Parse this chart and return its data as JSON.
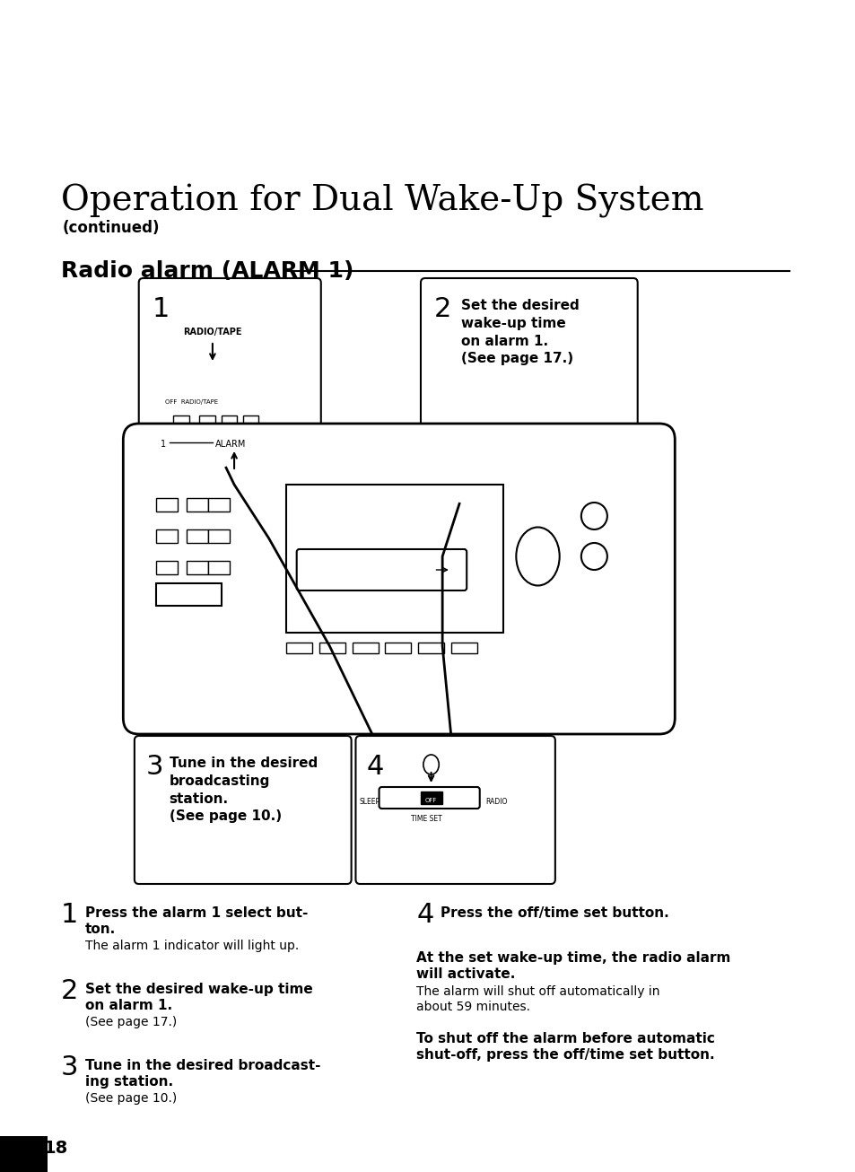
{
  "title": "Operation for Dual Wake-Up System",
  "subtitle": "(continued)",
  "section_title": "Radio alarm (ALARM 1)",
  "bg_color": "#ffffff",
  "page_number": "18",
  "step1_label": "1",
  "step2_label": "2",
  "step2_text": "Set the desired\nwake-up time\non alarm 1.\n(See page 17.)",
  "step3_label": "3",
  "step3_text": "Tune in the desired\nbroadcasting\nstation.\n(See page 10.)",
  "step4_label": "4",
  "instr1_num": "1",
  "instr1_bold": "Press the alarm 1 select but-\nton.",
  "instr1_normal": "The alarm 1 indicator will light up.",
  "instr2_num": "2",
  "instr2_bold": "Set the desired wake-up time\non alarm 1.",
  "instr2_normal": "(See page 17.)",
  "instr3_num": "3",
  "instr3_bold": "Tune in the desired broadcast-\ning station.",
  "instr3_normal": "(See page 10.)",
  "instr4_num": "4",
  "instr4_bold": "Press the off/time set button.",
  "instr4a_bold": "At the set wake-up time, the radio alarm\nwill activate.",
  "instr4a_normal": "The alarm will shut off automatically in\nabout 59 minutes.",
  "instr4b_bold": "To shut off the alarm before automatic\nshut-off, press the off/time set button."
}
